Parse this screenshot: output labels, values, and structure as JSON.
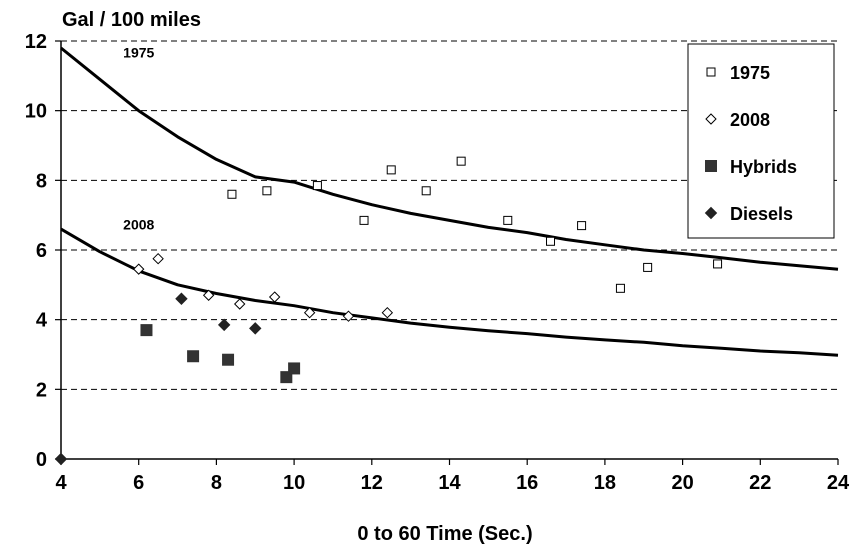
{
  "chart_data": {
    "type": "scatter",
    "title": "",
    "ylabel": "Gal / 100 miles",
    "xlabel": "0 to 60 Time (Sec.)",
    "xlim": [
      4,
      24
    ],
    "ylim": [
      0,
      12
    ],
    "xticks": [
      "4",
      "6",
      "8",
      "10",
      "12",
      "14",
      "16",
      "18",
      "20",
      "22",
      "24"
    ],
    "yticks": [
      "0",
      "2",
      "4",
      "6",
      "8",
      "10",
      "12"
    ],
    "grid": "horizontal dashed",
    "legend_position": "top-right",
    "series": [
      {
        "name": "1975",
        "marker": "hollow-square",
        "x": [
          8.4,
          9.3,
          10.6,
          11.8,
          12.5,
          13.4,
          14.3,
          15.5,
          16.6,
          17.4,
          18.4,
          19.1,
          20.9
        ],
        "y": [
          7.6,
          7.7,
          7.85,
          6.85,
          8.3,
          7.7,
          8.55,
          6.85,
          6.25,
          6.7,
          4.9,
          5.5,
          5.6
        ]
      },
      {
        "name": "2008",
        "marker": "hollow-diamond",
        "x": [
          6.0,
          6.5,
          7.8,
          8.6,
          9.5,
          10.4,
          11.4,
          12.4
        ],
        "y": [
          5.45,
          5.75,
          4.7,
          4.45,
          4.65,
          4.2,
          4.1,
          4.2
        ]
      },
      {
        "name": "Hybrids",
        "marker": "filled-square",
        "x": [
          6.2,
          7.4,
          8.3,
          9.8,
          10.0
        ],
        "y": [
          3.7,
          2.95,
          2.85,
          2.35,
          2.6
        ]
      },
      {
        "name": "Diesels",
        "marker": "filled-diamond",
        "x": [
          4.0,
          7.1,
          8.2,
          9.0
        ],
        "y": [
          0.0,
          4.6,
          3.85,
          3.75
        ]
      }
    ],
    "trend_curves": [
      {
        "label": "1975",
        "x": [
          4,
          5,
          6,
          7,
          8,
          9,
          10,
          11,
          12,
          13,
          14,
          15,
          16,
          17,
          18,
          19,
          20,
          21,
          22,
          23,
          24
        ],
        "y": [
          11.8,
          10.9,
          10.0,
          9.25,
          8.6,
          8.1,
          7.95,
          7.6,
          7.3,
          7.05,
          6.85,
          6.65,
          6.5,
          6.3,
          6.15,
          6.0,
          5.9,
          5.78,
          5.65,
          5.55,
          5.45
        ]
      },
      {
        "label": "2008",
        "x": [
          4,
          5,
          6,
          7,
          8,
          9,
          10,
          11,
          12,
          13,
          14,
          15,
          16,
          17,
          18,
          19,
          20,
          21,
          22,
          23,
          24
        ],
        "y": [
          6.6,
          5.95,
          5.4,
          5.0,
          4.75,
          4.55,
          4.4,
          4.2,
          4.05,
          3.9,
          3.78,
          3.68,
          3.6,
          3.5,
          3.42,
          3.35,
          3.25,
          3.18,
          3.1,
          3.05,
          2.98
        ]
      }
    ]
  }
}
